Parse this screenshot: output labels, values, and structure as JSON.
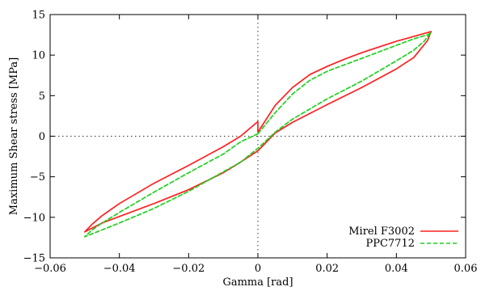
{
  "chart_data": {
    "type": "line",
    "title": "",
    "xlabel": "Gamma [rad]",
    "ylabel": "Maximum Shear stress [MPa]",
    "xlim": [
      -0.06,
      0.06
    ],
    "ylim": [
      -15,
      15
    ],
    "xticks": [
      -0.06,
      -0.04,
      -0.02,
      0,
      0.02,
      0.04,
      0.06
    ],
    "xtick_labels": [
      "−0.06",
      "−0.04",
      "−0.02",
      "0",
      "0.02",
      "0.04",
      "0.06"
    ],
    "yticks": [
      -15,
      -10,
      -5,
      0,
      5,
      10,
      15
    ],
    "ytick_labels": [
      "−15",
      "−10",
      "−5",
      "0",
      "5",
      "10",
      "15"
    ],
    "grid": false,
    "zero_lines": true,
    "legend_position": "bottom-right",
    "series": [
      {
        "name": "Mirel F3002",
        "color": "#ff2020",
        "dash": "solid",
        "points": [
          [
            0.0,
            1.8
          ],
          [
            0.0,
            0.5
          ],
          [
            0.005,
            3.8
          ],
          [
            0.01,
            6.0
          ],
          [
            0.015,
            7.6
          ],
          [
            0.02,
            8.6
          ],
          [
            0.025,
            9.5
          ],
          [
            0.03,
            10.3
          ],
          [
            0.035,
            11.0
          ],
          [
            0.04,
            11.7
          ],
          [
            0.045,
            12.3
          ],
          [
            0.05,
            12.9
          ],
          [
            0.049,
            11.8
          ],
          [
            0.045,
            9.7
          ],
          [
            0.04,
            8.3
          ],
          [
            0.03,
            6.0
          ],
          [
            0.02,
            3.9
          ],
          [
            0.01,
            1.7
          ],
          [
            0.005,
            0.4
          ],
          [
            0.0,
            -1.8
          ],
          [
            -0.005,
            -3.2
          ],
          [
            -0.01,
            -4.5
          ],
          [
            -0.02,
            -6.6
          ],
          [
            -0.03,
            -8.3
          ],
          [
            -0.04,
            -9.9
          ],
          [
            -0.045,
            -10.7
          ],
          [
            -0.05,
            -11.8
          ],
          [
            -0.048,
            -10.9
          ],
          [
            -0.045,
            -9.8
          ],
          [
            -0.04,
            -8.3
          ],
          [
            -0.03,
            -5.8
          ],
          [
            -0.02,
            -3.6
          ],
          [
            -0.01,
            -1.3
          ],
          [
            -0.005,
            0.0
          ],
          [
            0.0,
            1.8
          ]
        ]
      },
      {
        "name": "PPC7712",
        "color": "#20d020",
        "dash": "dashed",
        "points": [
          [
            0.0,
            0.3
          ],
          [
            0.005,
            2.9
          ],
          [
            0.01,
            5.2
          ],
          [
            0.015,
            6.9
          ],
          [
            0.02,
            8.0
          ],
          [
            0.03,
            9.6
          ],
          [
            0.04,
            11.2
          ],
          [
            0.045,
            12.0
          ],
          [
            0.049,
            12.5
          ],
          [
            0.05,
            12.8
          ],
          [
            0.048,
            11.7
          ],
          [
            0.045,
            10.6
          ],
          [
            0.04,
            9.3
          ],
          [
            0.03,
            6.8
          ],
          [
            0.02,
            4.6
          ],
          [
            0.01,
            2.1
          ],
          [
            0.005,
            0.5
          ],
          [
            0.0,
            -1.5
          ],
          [
            -0.005,
            -3.2
          ],
          [
            -0.01,
            -4.4
          ],
          [
            -0.02,
            -6.8
          ],
          [
            -0.03,
            -8.9
          ],
          [
            -0.04,
            -10.7
          ],
          [
            -0.05,
            -12.4
          ],
          [
            -0.048,
            -11.6
          ],
          [
            -0.045,
            -10.7
          ],
          [
            -0.04,
            -9.4
          ],
          [
            -0.03,
            -6.9
          ],
          [
            -0.02,
            -4.5
          ],
          [
            -0.01,
            -2.2
          ],
          [
            -0.005,
            -0.7
          ],
          [
            0.0,
            0.3
          ]
        ]
      }
    ]
  }
}
